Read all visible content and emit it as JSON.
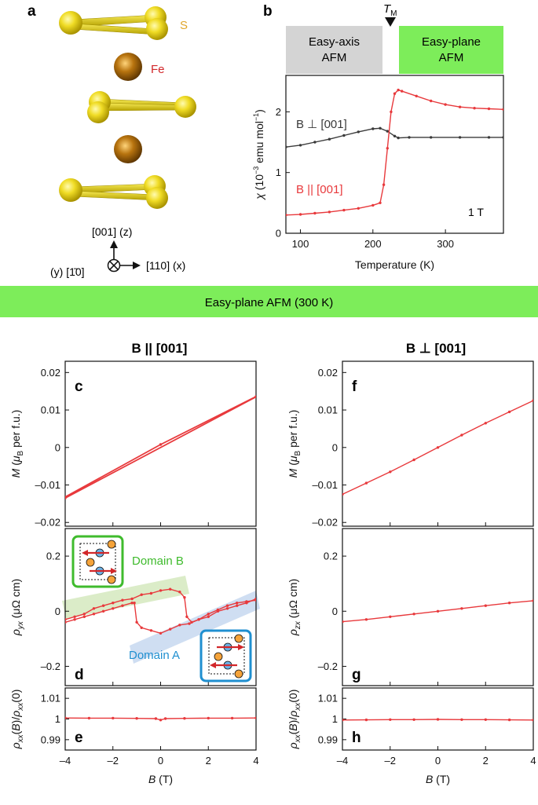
{
  "colors": {
    "red": "#e8393c",
    "dark": "#3a3a3a",
    "green_banner": "#7ded5a",
    "gray_box": "#d4d4d4",
    "sulfur": "#e6d21e",
    "iron": "#b87410",
    "s_label": "#e0a62a",
    "fe_label": "#d2272a",
    "domain_b": "#3fbb2d",
    "domain_a": "#1f8fd0"
  },
  "panel_a": {
    "letter": "a",
    "s_label": "S",
    "fe_label": "Fe",
    "axis_z": "[001] (z)",
    "axis_y": "(y) [1̄0]",
    "axis_x": "[110] (x)"
  },
  "banner": {
    "text": "Easy-plane AFM (300 K)"
  },
  "col_left_title": "B || [001]",
  "col_right_title": "B ⊥ [001]",
  "chart_data": [
    {
      "id": "b",
      "type": "line",
      "letter": "b",
      "xlabel": "Temperature (K)",
      "ylabel": "χ (10⁻³ emu mol⁻¹)",
      "xlim": [
        80,
        380
      ],
      "ylim": [
        0,
        2.6
      ],
      "xticks": [
        100,
        200,
        300
      ],
      "yticks": [
        0,
        1,
        2
      ],
      "annotation": "1 T",
      "transition_label": "T_M",
      "phase_labels": [
        {
          "line1": "Easy-axis",
          "line2": "AFM"
        },
        {
          "line1": "Easy-plane",
          "line2": "AFM"
        }
      ],
      "series": [
        {
          "name": "B ⊥ [001]",
          "color": "#3a3a3a",
          "x": [
            80,
            100,
            120,
            140,
            160,
            180,
            200,
            210,
            220,
            230,
            235,
            250,
            280,
            320,
            360,
            380
          ],
          "y": [
            1.42,
            1.45,
            1.5,
            1.55,
            1.61,
            1.67,
            1.72,
            1.73,
            1.68,
            1.6,
            1.57,
            1.58,
            1.58,
            1.58,
            1.58,
            1.58
          ]
        },
        {
          "name": "B || [001]",
          "color": "#e8393c",
          "x": [
            80,
            100,
            120,
            140,
            160,
            180,
            200,
            210,
            215,
            220,
            225,
            230,
            235,
            240,
            260,
            280,
            300,
            320,
            340,
            360,
            380
          ],
          "y": [
            0.3,
            0.31,
            0.33,
            0.35,
            0.38,
            0.41,
            0.46,
            0.5,
            0.8,
            1.4,
            2.0,
            2.3,
            2.36,
            2.34,
            2.26,
            2.18,
            2.12,
            2.08,
            2.06,
            2.05,
            2.04
          ]
        }
      ]
    },
    {
      "id": "c",
      "type": "line",
      "letter": "c",
      "ylabel": "M (μB per f.u.)",
      "xlim": [
        -4,
        4
      ],
      "ylim": [
        -0.021,
        0.023
      ],
      "yticks": [
        -0.02,
        -0.01,
        0,
        0.01,
        0.02
      ],
      "ytick_labels": [
        "–0.02",
        "–0.01",
        "0",
        "0.01",
        "0.02"
      ],
      "series": [
        {
          "name": "",
          "color": "#e8393c",
          "x": [
            -4,
            4
          ],
          "y": [
            -0.0135,
            0.0135
          ]
        },
        {
          "name": "",
          "color": "#e8393c",
          "x": [
            -4,
            0,
            4
          ],
          "y": [
            -0.0132,
            0.0008,
            0.0136
          ]
        }
      ]
    },
    {
      "id": "d",
      "type": "line",
      "letter": "d",
      "ylabel": "ρyx (μΩ cm)",
      "xlim": [
        -4,
        4
      ],
      "ylim": [
        -0.27,
        0.3
      ],
      "yticks": [
        -0.2,
        0,
        0.2
      ],
      "ytick_labels": [
        "–0.2",
        "0",
        "0.2"
      ],
      "annotations": [
        {
          "text": "Domain B",
          "color": "#3fbb2d"
        },
        {
          "text": "Domain A",
          "color": "#1f8fd0"
        }
      ],
      "series": [
        {
          "name": "",
          "color": "#e8393c",
          "x": [
            -4,
            -3.6,
            -3.2,
            -2.8,
            -2.4,
            -2,
            -1.6,
            -1.2,
            -0.8,
            -0.4,
            0,
            0.4,
            0.8,
            1,
            1.1,
            1.3,
            1.6,
            2,
            2.4,
            2.8,
            3.2,
            3.6,
            4
          ],
          "y": [
            -0.03,
            -0.02,
            -0.01,
            0.01,
            0.02,
            0.03,
            0.04,
            0.045,
            0.06,
            0.065,
            0.075,
            0.08,
            0.07,
            0.05,
            -0.02,
            -0.04,
            -0.03,
            -0.02,
            0,
            0.01,
            0.02,
            0.03,
            0.045
          ]
        },
        {
          "name": "",
          "color": "#e8393c",
          "x": [
            -4,
            -3.6,
            -3.2,
            -2.8,
            -2.4,
            -2,
            -1.6,
            -1.2,
            -1.1,
            -1,
            -0.8,
            -0.4,
            0,
            0.4,
            0.8,
            1.2,
            1.6,
            2,
            2.4,
            2.8,
            3.2,
            3.6,
            4
          ],
          "y": [
            -0.04,
            -0.03,
            -0.02,
            -0.01,
            0,
            0.01,
            0.02,
            0.03,
            0.03,
            -0.04,
            -0.06,
            -0.07,
            -0.08,
            -0.065,
            -0.05,
            -0.045,
            -0.03,
            -0.01,
            0.005,
            0.02,
            0.03,
            0.035,
            0.04
          ]
        }
      ]
    },
    {
      "id": "e",
      "type": "line",
      "letter": "e",
      "xlabel": "B (T)",
      "ylabel": "ρxx(B)/ρxx(0)",
      "xlim": [
        -4,
        4
      ],
      "ylim": [
        0.985,
        1.015
      ],
      "xticks": [
        -4,
        -2,
        0,
        2,
        4
      ],
      "xtick_labels": [
        "–4",
        "–2",
        "0",
        "2",
        "4"
      ],
      "yticks": [
        0.99,
        1,
        1.01
      ],
      "ytick_labels": [
        "0.99",
        "1",
        "1.01"
      ],
      "series": [
        {
          "name": "",
          "color": "#e8393c",
          "x": [
            -4,
            -3,
            -2,
            -1,
            -0.2,
            0,
            0.2,
            1,
            2,
            3,
            4
          ],
          "y": [
            1.0005,
            1.0004,
            1.0004,
            1.0003,
            1.0002,
            0.9995,
            1.0002,
            1.0003,
            1.0004,
            1.0004,
            1.0005
          ]
        }
      ]
    },
    {
      "id": "f",
      "type": "line",
      "letter": "f",
      "ylabel": "M (μB per f.u.)",
      "xlim": [
        -4,
        4
      ],
      "ylim": [
        -0.021,
        0.023
      ],
      "yticks": [
        -0.02,
        -0.01,
        0,
        0.01,
        0.02
      ],
      "ytick_labels": [
        "–0.02",
        "–0.01",
        "0",
        "0.01",
        "0.02"
      ],
      "series": [
        {
          "name": "",
          "color": "#e8393c",
          "x": [
            -4,
            -3,
            -2,
            -1,
            0,
            1,
            2,
            3,
            4
          ],
          "y": [
            -0.0125,
            -0.0095,
            -0.0065,
            -0.0033,
            0,
            0.0033,
            0.0065,
            0.0095,
            0.0125
          ]
        }
      ]
    },
    {
      "id": "g",
      "type": "line",
      "letter": "g",
      "ylabel": "ρzx (μΩ cm)",
      "xlim": [
        -4,
        4
      ],
      "ylim": [
        -0.27,
        0.3
      ],
      "yticks": [
        -0.2,
        0,
        0.2
      ],
      "ytick_labels": [
        "–0.2",
        "0",
        "0.2"
      ],
      "series": [
        {
          "name": "",
          "color": "#e8393c",
          "x": [
            -4,
            -3,
            -2,
            -1,
            0,
            1,
            2,
            3,
            4
          ],
          "y": [
            -0.038,
            -0.03,
            -0.02,
            -0.01,
            0,
            0.01,
            0.02,
            0.03,
            0.038
          ]
        }
      ]
    },
    {
      "id": "h",
      "type": "line",
      "letter": "h",
      "xlabel": "B (T)",
      "ylabel": "ρxx(B)/ρxx(0)",
      "xlim": [
        -4,
        4
      ],
      "ylim": [
        0.985,
        1.015
      ],
      "xticks": [
        -4,
        -2,
        0,
        2,
        4
      ],
      "xtick_labels": [
        "–4",
        "–2",
        "0",
        "2",
        "4"
      ],
      "yticks": [
        0.99,
        1,
        1.01
      ],
      "ytick_labels": [
        "0.99",
        "1",
        "1.01"
      ],
      "series": [
        {
          "name": "",
          "color": "#e8393c",
          "x": [
            -4,
            -3,
            -2,
            -1,
            0,
            1,
            2,
            3,
            4
          ],
          "y": [
            0.9995,
            0.9996,
            0.9997,
            0.9997,
            0.9998,
            0.9997,
            0.9997,
            0.9996,
            0.9995
          ]
        }
      ]
    }
  ]
}
